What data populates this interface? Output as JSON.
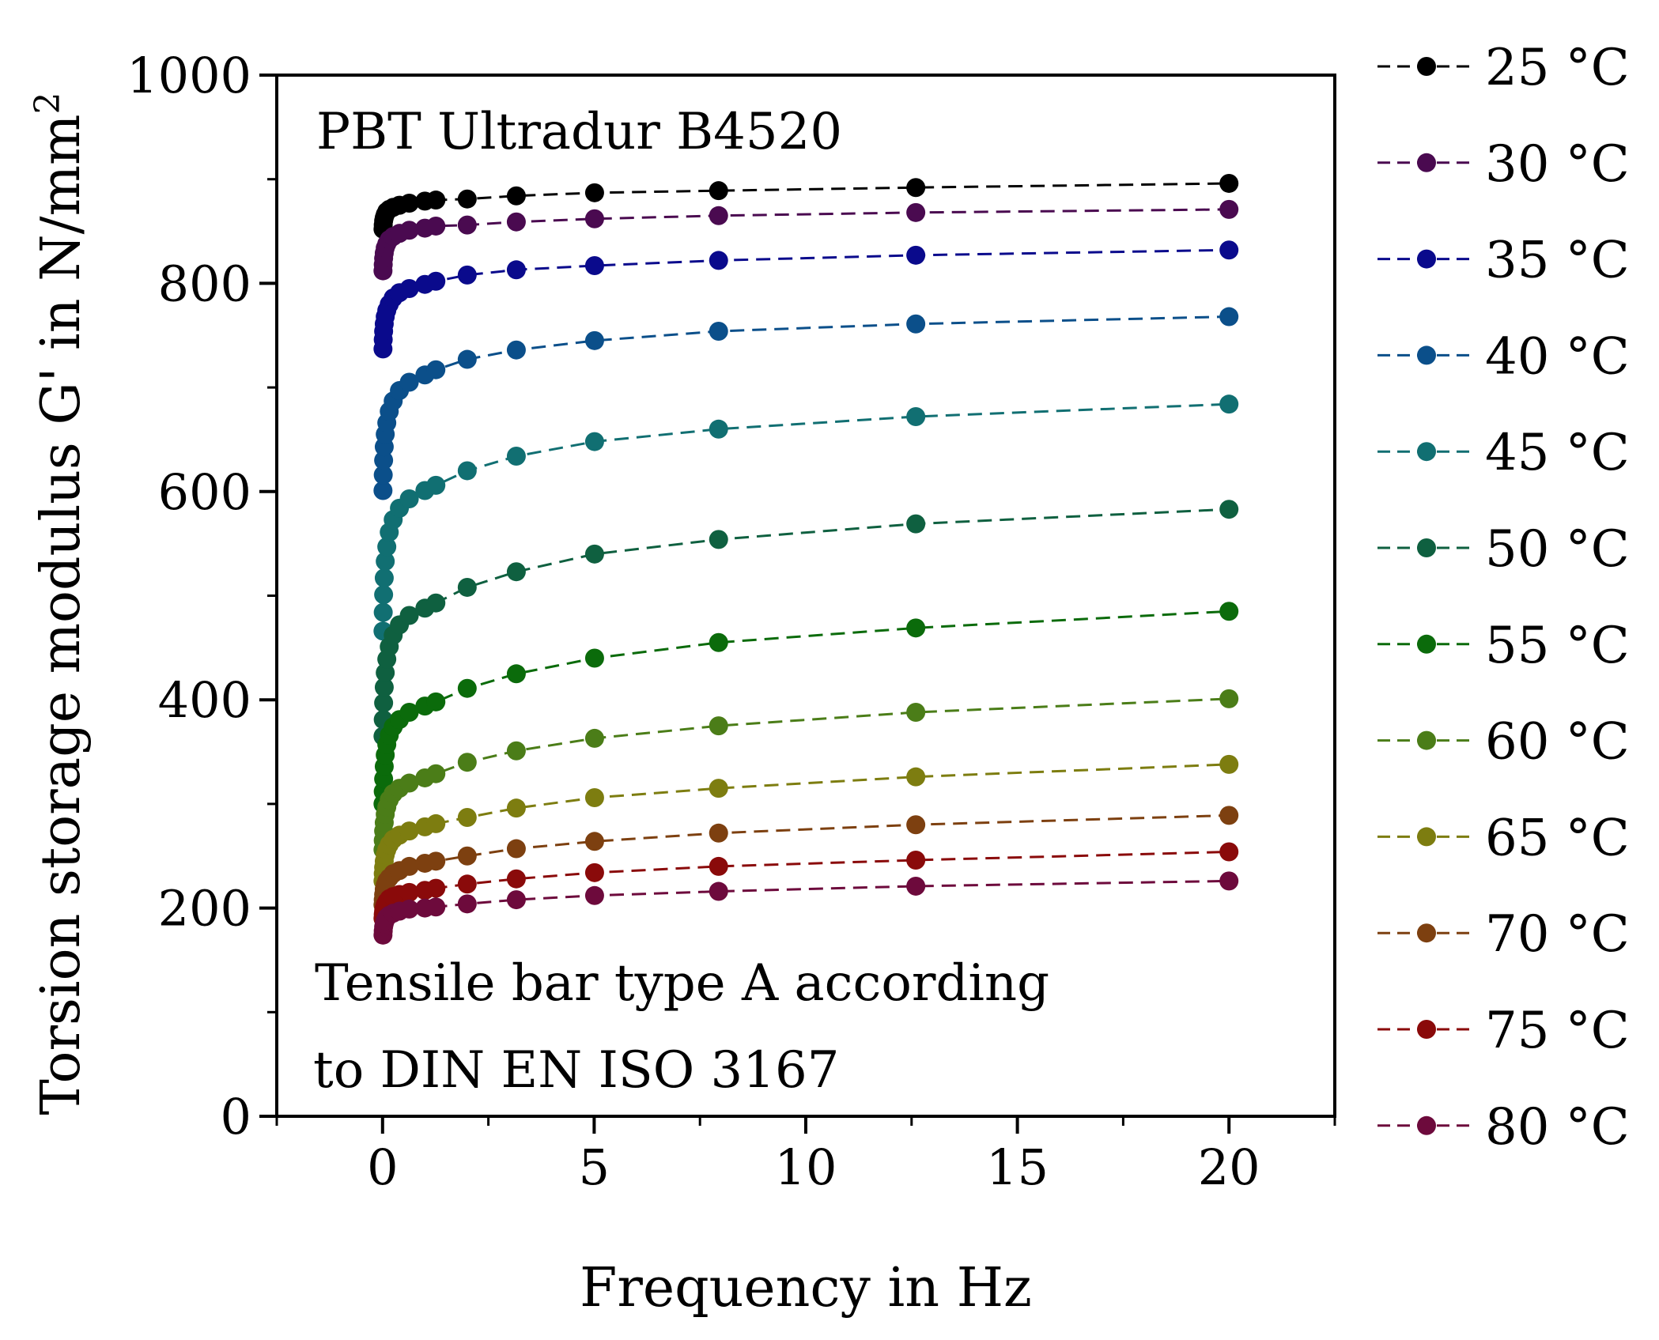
{
  "chart_data": {
    "type": "line",
    "title": "",
    "xlabel": "Frequency in Hz",
    "ylabel": "Torsion storage modulus G' in N/mm",
    "ylabel_superscript": "2",
    "xlim": [
      -2.5,
      22.5
    ],
    "ylim": [
      0,
      1000
    ],
    "xticks": [
      0,
      5,
      10,
      15,
      20
    ],
    "xtick_labels": [
      "0",
      "5",
      "10",
      "15",
      "20"
    ],
    "yticks": [
      0,
      200,
      400,
      600,
      800,
      1000
    ],
    "ytick_labels": [
      "0",
      "200",
      "400",
      "600",
      "800",
      "1000"
    ],
    "annotations": [
      "PBT Ultradur B4520",
      "Tensile bar type A according",
      "to DIN EN ISO 3167"
    ],
    "legend_position": "right, outside",
    "x": [
      0.01,
      0.0158,
      0.0251,
      0.0398,
      0.0631,
      0.1,
      0.158,
      0.251,
      0.398,
      0.631,
      1.0,
      1.26,
      2.0,
      3.16,
      5.01,
      7.94,
      12.6,
      20.0
    ],
    "series": [
      {
        "name": "25 °C",
        "color": "#000000",
        "values": [
          852,
          856,
          860,
          863,
          866,
          869,
          871,
          873,
          875,
          877,
          879,
          880,
          881,
          884,
          887,
          889,
          892,
          896
        ]
      },
      {
        "name": "30 °C",
        "color": "#4a0a50",
        "values": [
          812,
          818,
          824,
          829,
          834,
          838,
          842,
          845,
          848,
          851,
          853,
          855,
          856,
          859,
          862,
          865,
          868,
          871
        ]
      },
      {
        "name": "35 °C",
        "color": "#0a0a8c",
        "values": [
          737,
          746,
          754,
          761,
          768,
          774,
          780,
          786,
          791,
          795,
          799,
          802,
          808,
          813,
          817,
          822,
          827,
          832
        ]
      },
      {
        "name": "40 °C",
        "color": "#0b4f8a",
        "values": [
          601,
          616,
          630,
          643,
          655,
          666,
          677,
          687,
          697,
          705,
          712,
          717,
          727,
          736,
          745,
          754,
          761,
          768
        ]
      },
      {
        "name": "45 °C",
        "color": "#116f72",
        "values": [
          466,
          484,
          501,
          517,
          533,
          547,
          561,
          573,
          584,
          593,
          601,
          606,
          620,
          634,
          648,
          660,
          672,
          684
        ]
      },
      {
        "name": "50 °C",
        "color": "#0f6040",
        "values": [
          365,
          381,
          397,
          412,
          426,
          439,
          451,
          462,
          472,
          481,
          488,
          493,
          508,
          523,
          540,
          554,
          569,
          583
        ]
      },
      {
        "name": "55 °C",
        "color": "#0b6b0b",
        "values": [
          300,
          312,
          324,
          336,
          347,
          357,
          366,
          374,
          381,
          388,
          394,
          398,
          411,
          425,
          440,
          455,
          469,
          485
        ]
      },
      {
        "name": "60 °C",
        "color": "#4b7d18",
        "values": [
          256,
          265,
          274,
          282,
          290,
          297,
          304,
          310,
          315,
          320,
          325,
          329,
          340,
          351,
          363,
          375,
          388,
          401
        ]
      },
      {
        "name": "65 °C",
        "color": "#7d7d10",
        "values": [
          226,
          233,
          239,
          245,
          251,
          256,
          261,
          266,
          270,
          274,
          278,
          281,
          287,
          296,
          306,
          315,
          326,
          338
        ]
      },
      {
        "name": "70 °C",
        "color": "#7d4010",
        "values": [
          203,
          208,
          213,
          218,
          222,
          226,
          229,
          233,
          236,
          240,
          243,
          245,
          250,
          257,
          264,
          272,
          280,
          289
        ]
      },
      {
        "name": "75 °C",
        "color": "#8a0a0a",
        "values": [
          190,
          194,
          197,
          200,
          203,
          206,
          209,
          211,
          213,
          215,
          217,
          219,
          223,
          228,
          234,
          240,
          246,
          254
        ]
      },
      {
        "name": "80 °C",
        "color": "#6d0a3c",
        "values": [
          174,
          178,
          182,
          185,
          188,
          191,
          193,
          195,
          197,
          199,
          200,
          201,
          204,
          208,
          212,
          216,
          221,
          226
        ]
      }
    ]
  }
}
